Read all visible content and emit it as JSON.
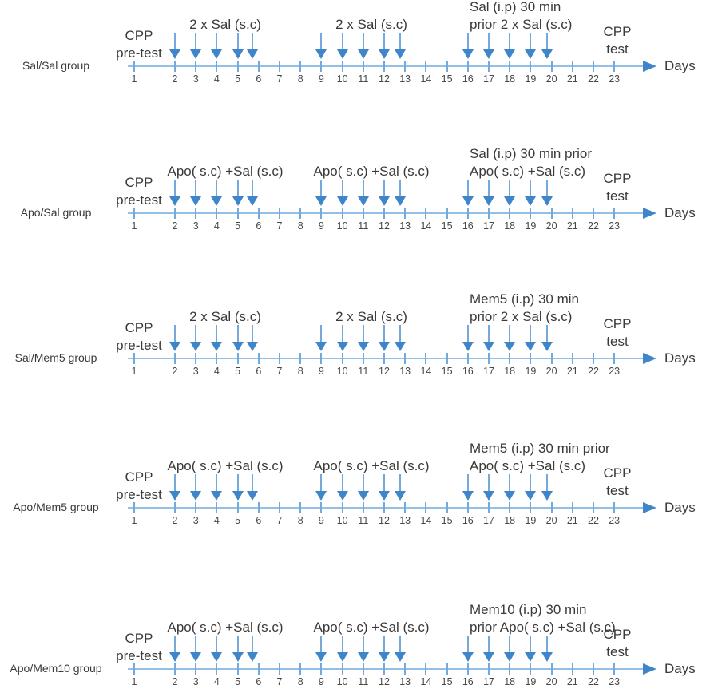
{
  "figure": {
    "days_axis_label": "Days",
    "day_numbers": [
      "1",
      "2",
      "3",
      "4",
      "5",
      "6",
      "7",
      "8",
      "9",
      "10",
      "11",
      "12",
      "13",
      "14",
      "15",
      "16",
      "17",
      "18",
      "19",
      "20",
      "21",
      "22",
      "23"
    ],
    "arrow_days": [
      2,
      3,
      4,
      5,
      6,
      9,
      10,
      11,
      12,
      13,
      16,
      17,
      18,
      19,
      20
    ],
    "pretest_label": [
      "CPP",
      "pre-test"
    ],
    "test_label": [
      "CPP",
      "test"
    ],
    "groups": [
      {
        "name": "Sal/Sal group",
        "phase1": [
          "2 x Sal (s.c)"
        ],
        "phase2": [
          "2 x Sal (s.c)"
        ],
        "phase3": [
          "Sal (i.p) 30 min",
          "prior 2 x Sal (s.c)"
        ]
      },
      {
        "name": "Apo/Sal group",
        "phase1": [
          "Apo( s.c) +Sal (s.c)"
        ],
        "phase2": [
          "Apo( s.c) +Sal (s.c)"
        ],
        "phase3": [
          "Sal (i.p) 30 min prior",
          "Apo( s.c) +Sal (s.c)"
        ]
      },
      {
        "name": "Sal/Mem5 group",
        "phase1": [
          "2 x Sal (s.c)"
        ],
        "phase2": [
          "2 x Sal (s.c)"
        ],
        "phase3": [
          "Mem5 (i.p) 30 min",
          "prior 2 x Sal (s.c)"
        ]
      },
      {
        "name": "Apo/Mem5 group",
        "phase1": [
          "Apo( s.c) +Sal (s.c)"
        ],
        "phase2": [
          "Apo( s.c) +Sal (s.c)"
        ],
        "phase3": [
          "Mem5 (i.p) 30 min prior",
          "Apo( s.c) +Sal (s.c)"
        ]
      },
      {
        "name": "Apo/Mem10 group",
        "phase1": [
          "Apo( s.c) +Sal (s.c)"
        ],
        "phase2": [
          "Apo( s.c) +Sal (s.c)"
        ],
        "phase3": [
          "Mem10 (i.p) 30 min",
          "prior Apo( s.c) +Sal (s.c)"
        ]
      }
    ],
    "colors": {
      "arrow_head": "#3e86c9",
      "arrow_stem": "#74a9dd",
      "axis_line": "#93c0e8",
      "tick": "#74a9dd",
      "text": "#3a3a3a"
    }
  }
}
